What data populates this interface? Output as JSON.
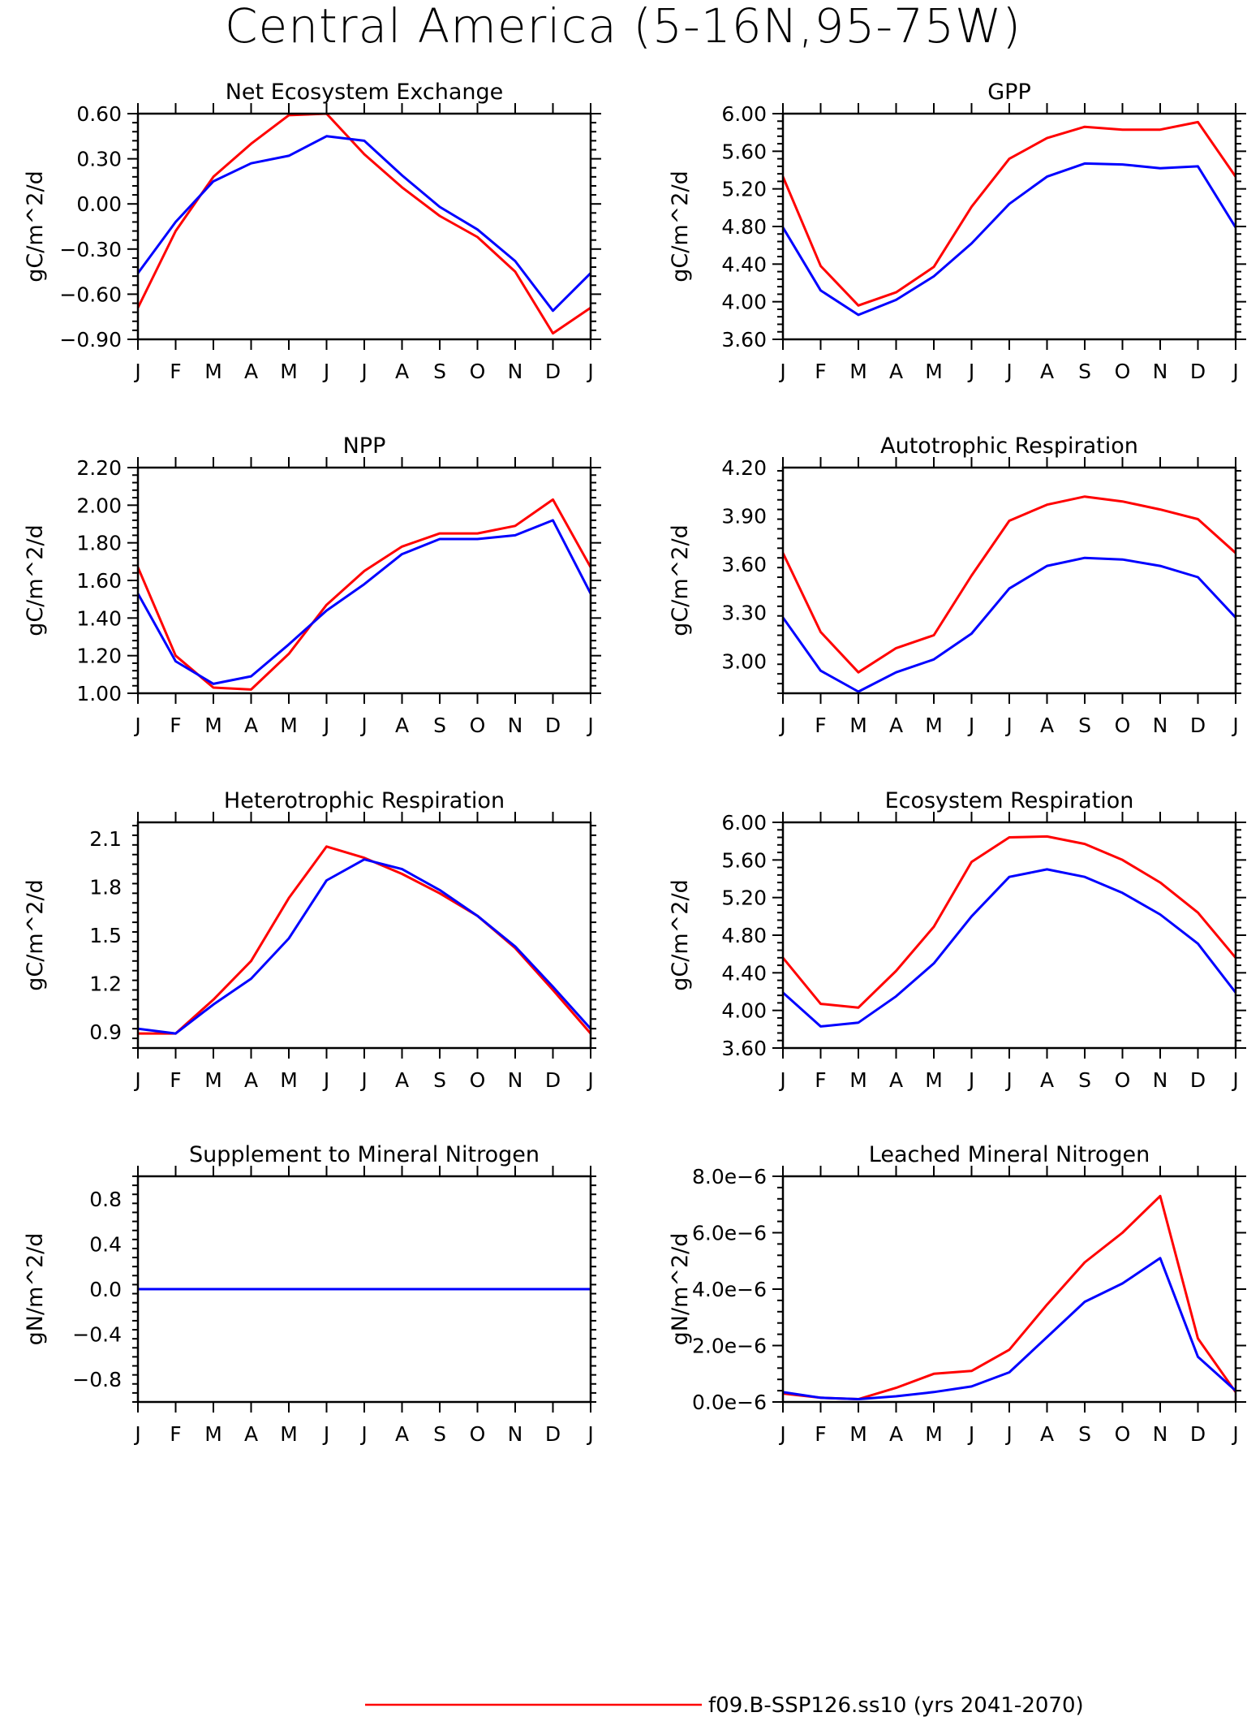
{
  "page_title": "Central America (5-16N,95-75W)",
  "legend": {
    "entries": [
      {
        "label": "f09.B-SSP126.ss10 (yrs 2041-2070)",
        "color": "#ff0000"
      }
    ]
  },
  "chart_data": [
    {
      "type": "line",
      "title": "Net Ecosystem Exchange",
      "ylabel": "gC/m^2/d",
      "x": [
        "J",
        "F",
        "M",
        "A",
        "M",
        "J",
        "J",
        "A",
        "S",
        "O",
        "N",
        "D",
        "J"
      ],
      "ylim": [
        -0.9,
        0.6
      ],
      "yticks": [
        "0.60",
        "0.30",
        "0.00",
        "-0.30",
        "-0.60",
        "-0.90"
      ],
      "ytick_values": [
        0.6,
        0.3,
        0.0,
        -0.3,
        -0.6,
        -0.9
      ],
      "series": [
        {
          "color": "#ff0000",
          "values": [
            -0.69,
            -0.18,
            0.18,
            0.4,
            0.59,
            0.6,
            0.33,
            0.11,
            -0.08,
            -0.22,
            -0.45,
            -0.86,
            -0.69
          ]
        },
        {
          "color": "#0000ff",
          "values": [
            -0.46,
            -0.12,
            0.15,
            0.27,
            0.32,
            0.45,
            0.42,
            0.19,
            -0.02,
            -0.17,
            -0.38,
            -0.71,
            -0.46
          ]
        }
      ]
    },
    {
      "type": "line",
      "title": "GPP",
      "ylabel": "gC/m^2/d",
      "x": [
        "J",
        "F",
        "M",
        "A",
        "M",
        "J",
        "J",
        "A",
        "S",
        "O",
        "N",
        "D",
        "J"
      ],
      "ylim": [
        3.6,
        6.0
      ],
      "yticks": [
        "6.00",
        "5.60",
        "5.20",
        "4.80",
        "4.40",
        "4.00",
        "3.60"
      ],
      "ytick_values": [
        6.0,
        5.6,
        5.2,
        4.8,
        4.4,
        4.0,
        3.6
      ],
      "series": [
        {
          "color": "#ff0000",
          "values": [
            5.33,
            4.38,
            3.96,
            4.1,
            4.37,
            5.01,
            5.52,
            5.74,
            5.86,
            5.83,
            5.83,
            5.91,
            5.33
          ]
        },
        {
          "color": "#0000ff",
          "values": [
            4.79,
            4.12,
            3.86,
            4.02,
            4.27,
            4.62,
            5.04,
            5.33,
            5.47,
            5.46,
            5.42,
            5.44,
            4.79
          ]
        }
      ]
    },
    {
      "type": "line",
      "title": "NPP",
      "ylabel": "gC/m^2/d",
      "x": [
        "J",
        "F",
        "M",
        "A",
        "M",
        "J",
        "J",
        "A",
        "S",
        "O",
        "N",
        "D",
        "J"
      ],
      "ylim": [
        1.0,
        2.2
      ],
      "yticks": [
        "2.20",
        "2.00",
        "1.80",
        "1.60",
        "1.40",
        "1.20",
        "1.00"
      ],
      "ytick_values": [
        2.2,
        2.0,
        1.8,
        1.6,
        1.4,
        1.2,
        1.0
      ],
      "series": [
        {
          "color": "#ff0000",
          "values": [
            1.67,
            1.2,
            1.03,
            1.02,
            1.21,
            1.47,
            1.65,
            1.78,
            1.85,
            1.85,
            1.89,
            2.03,
            1.67
          ]
        },
        {
          "color": "#0000ff",
          "values": [
            1.53,
            1.17,
            1.05,
            1.09,
            1.26,
            1.44,
            1.58,
            1.74,
            1.82,
            1.82,
            1.84,
            1.92,
            1.53
          ]
        }
      ]
    },
    {
      "type": "line",
      "title": "Autotrophic Respiration",
      "ylabel": "gC/m^2/d",
      "x": [
        "J",
        "F",
        "M",
        "A",
        "M",
        "J",
        "J",
        "A",
        "S",
        "O",
        "N",
        "D",
        "J"
      ],
      "ylim": [
        2.8,
        4.2
      ],
      "yticks": [
        "4.20",
        "3.90",
        "3.60",
        "3.30",
        "3.00"
      ],
      "ytick_values": [
        4.2,
        3.9,
        3.6,
        3.3,
        3.0
      ],
      "series": [
        {
          "color": "#ff0000",
          "values": [
            3.67,
            3.18,
            2.93,
            3.08,
            3.16,
            3.53,
            3.87,
            3.97,
            4.02,
            3.99,
            3.94,
            3.88,
            3.67
          ]
        },
        {
          "color": "#0000ff",
          "values": [
            3.27,
            2.94,
            2.81,
            2.93,
            3.01,
            3.17,
            3.45,
            3.59,
            3.64,
            3.63,
            3.59,
            3.52,
            3.27
          ]
        }
      ]
    },
    {
      "type": "line",
      "title": "Heterotrophic Respiration",
      "ylabel": "gC/m^2/d",
      "x": [
        "J",
        "F",
        "M",
        "A",
        "M",
        "J",
        "J",
        "A",
        "S",
        "O",
        "N",
        "D",
        "J"
      ],
      "ylim": [
        0.8,
        2.2
      ],
      "yticks": [
        "2.1",
        "1.8",
        "1.5",
        "1.2",
        "0.9"
      ],
      "ytick_values": [
        2.1,
        1.8,
        1.5,
        1.2,
        0.9
      ],
      "series": [
        {
          "color": "#ff0000",
          "values": [
            0.89,
            0.89,
            1.1,
            1.34,
            1.73,
            2.05,
            1.98,
            1.88,
            1.76,
            1.62,
            1.42,
            1.16,
            0.89
          ]
        },
        {
          "color": "#0000ff",
          "values": [
            0.92,
            0.89,
            1.07,
            1.23,
            1.48,
            1.84,
            1.97,
            1.91,
            1.78,
            1.62,
            1.43,
            1.18,
            0.92
          ]
        }
      ]
    },
    {
      "type": "line",
      "title": "Ecosystem Respiration",
      "ylabel": "gC/m^2/d",
      "x": [
        "J",
        "F",
        "M",
        "A",
        "M",
        "J",
        "J",
        "A",
        "S",
        "O",
        "N",
        "D",
        "J"
      ],
      "ylim": [
        3.6,
        6.0
      ],
      "yticks": [
        "6.00",
        "5.60",
        "5.20",
        "4.80",
        "4.40",
        "4.00",
        "3.60"
      ],
      "ytick_values": [
        6.0,
        5.6,
        5.2,
        4.8,
        4.4,
        4.0,
        3.6
      ],
      "series": [
        {
          "color": "#ff0000",
          "values": [
            4.56,
            4.07,
            4.03,
            4.42,
            4.89,
            5.58,
            5.84,
            5.85,
            5.77,
            5.6,
            5.36,
            5.04,
            4.56
          ]
        },
        {
          "color": "#0000ff",
          "values": [
            4.19,
            3.83,
            3.87,
            4.15,
            4.5,
            5.0,
            5.42,
            5.5,
            5.42,
            5.25,
            5.02,
            4.71,
            4.19
          ]
        }
      ]
    },
    {
      "type": "line",
      "title": "Supplement to Mineral Nitrogen",
      "ylabel": "gN/m^2/d",
      "x": [
        "J",
        "F",
        "M",
        "A",
        "M",
        "J",
        "J",
        "A",
        "S",
        "O",
        "N",
        "D",
        "J"
      ],
      "ylim": [
        -1.0,
        1.0
      ],
      "yticks": [
        "0.8",
        "0.4",
        "0.0",
        "-0.4",
        "-0.8"
      ],
      "ytick_values": [
        0.8,
        0.4,
        0.0,
        -0.4,
        -0.8
      ],
      "series": [
        {
          "color": "#ff0000",
          "values": [
            0,
            0,
            0,
            0,
            0,
            0,
            0,
            0,
            0,
            0,
            0,
            0,
            0
          ]
        },
        {
          "color": "#0000ff",
          "values": [
            0,
            0,
            0,
            0,
            0,
            0,
            0,
            0,
            0,
            0,
            0,
            0,
            0
          ]
        }
      ]
    },
    {
      "type": "line",
      "title": "Leached Mineral Nitrogen",
      "ylabel": "gN/m^2/d",
      "x": [
        "J",
        "F",
        "M",
        "A",
        "M",
        "J",
        "J",
        "A",
        "S",
        "O",
        "N",
        "D",
        "J"
      ],
      "ylim": [
        0,
        8e-06
      ],
      "yticks": [
        "8.0e-6",
        "6.0e-6",
        "4.0e-6",
        "2.0e-6",
        "0.0e-6"
      ],
      "ytick_values": [
        8e-06,
        6e-06,
        4e-06,
        2e-06,
        0
      ],
      "series": [
        {
          "color": "#ff0000",
          "values": [
            3e-07,
            1.5e-07,
            1e-07,
            5e-07,
            1e-06,
            1.1e-06,
            1.85e-06,
            3.45e-06,
            4.95e-06,
            6e-06,
            7.3e-06,
            2.25e-06,
            3.5e-07
          ]
        },
        {
          "color": "#0000ff",
          "values": [
            3.5e-07,
            1.5e-07,
            1e-07,
            2e-07,
            3.5e-07,
            5.5e-07,
            1.05e-06,
            2.3e-06,
            3.55e-06,
            4.2e-06,
            5.1e-06,
            1.6e-06,
            4e-07
          ]
        }
      ]
    }
  ]
}
